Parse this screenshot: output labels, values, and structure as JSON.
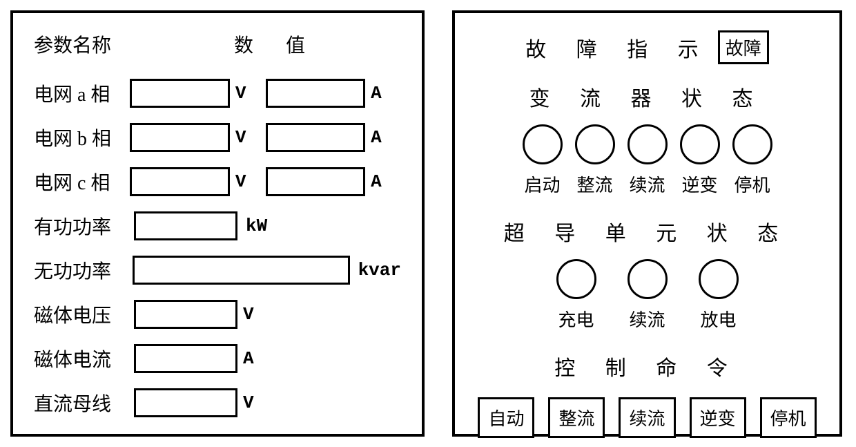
{
  "left_panel": {
    "header_param": "参数名称",
    "header_value": "数 值",
    "rows": [
      {
        "label": "电网 a 相",
        "has_two_inputs": true,
        "unit1": "V",
        "unit2": "A"
      },
      {
        "label": "电网 b 相",
        "has_two_inputs": true,
        "unit1": "V",
        "unit2": "A"
      },
      {
        "label": "电网 c 相",
        "has_two_inputs": true,
        "unit1": "V",
        "unit2": "A"
      },
      {
        "label": "有功功率",
        "has_two_inputs": false,
        "wide": false,
        "unit1": "kW"
      },
      {
        "label": "无功功率",
        "has_two_inputs": false,
        "wide": true,
        "unit1": "kvar"
      },
      {
        "label": "磁体电压",
        "has_two_inputs": false,
        "wide": false,
        "unit1": "V"
      },
      {
        "label": "磁体电流",
        "has_two_inputs": false,
        "wide": false,
        "unit1": "A"
      },
      {
        "label": "直流母线",
        "has_two_inputs": false,
        "wide": false,
        "unit1": "V"
      }
    ]
  },
  "right_panel": {
    "fault_title": "故 障 指 示",
    "fault_badge": "故障",
    "converter_status_title": "变 流 器 状 态",
    "converter_labels": [
      "启动",
      "整流",
      "续流",
      "逆变",
      "停机"
    ],
    "supercond_status_title": "超 导 单 元 状 态",
    "supercond_labels": [
      "充电",
      "续流",
      "放电"
    ],
    "control_cmd_title": "控 制 命 令",
    "control_buttons": [
      "自动",
      "整流",
      "续流",
      "逆变",
      "停机"
    ]
  },
  "colors": {
    "border": "#000000",
    "background": "#ffffff"
  }
}
